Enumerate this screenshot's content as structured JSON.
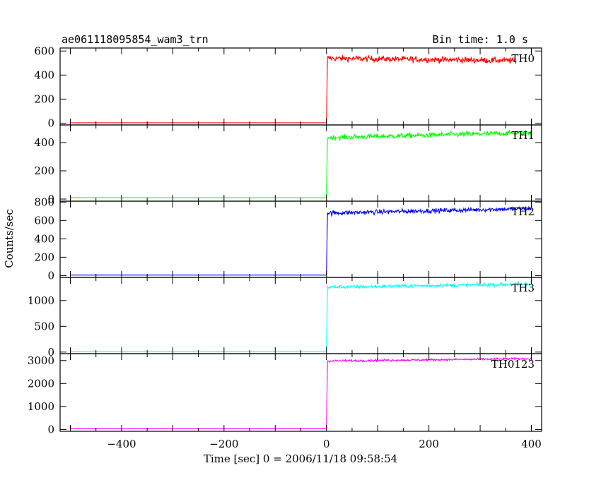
{
  "chart_data": {
    "type": "line",
    "title": "ae061118095854_wam3_trn",
    "bin_time": "Bin time: 1.0 s",
    "xlabel": "Time [sec] 0 = 2006/11/18 09:58:54",
    "ylabel": "Counts/sec",
    "xlim": [
      -520,
      420
    ],
    "x_ticks": [
      -400,
      -200,
      0,
      200,
      400
    ],
    "x_tick_labels": [
      "−400",
      "−200",
      "0",
      "200",
      "400"
    ],
    "grid": false,
    "panels": [
      {
        "name": "TH0",
        "color": "#ff0000",
        "ylim": [
          -15,
          625
        ],
        "y_ticks": [
          0,
          200,
          400,
          600
        ],
        "y_tick_labels": [
          "0",
          "200",
          "400",
          "600"
        ],
        "pre_level": 3,
        "post_start": 540,
        "post_end": 520,
        "noise": 25,
        "data_end": 370,
        "x": [
          -500,
          0,
          2,
          100,
          200,
          300,
          370
        ],
        "y": [
          3,
          3,
          560,
          545,
          540,
          525,
          520
        ]
      },
      {
        "name": "TH1",
        "color": "#00ff00",
        "ylim": [
          -15,
          525
        ],
        "y_ticks": [
          0,
          200,
          400
        ],
        "y_tick_labels": [
          "0",
          "200",
          "400"
        ],
        "pre_level": 10,
        "post_start": 435,
        "post_end": 470,
        "noise": 18,
        "data_end": 400,
        "x": [
          -500,
          0,
          2,
          100,
          200,
          300,
          400
        ],
        "y": [
          10,
          10,
          440,
          440,
          450,
          460,
          470
        ]
      },
      {
        "name": "TH2",
        "color": "#0000ff",
        "ylim": [
          -20,
          810
        ],
        "y_ticks": [
          0,
          200,
          400,
          600,
          800
        ],
        "y_tick_labels": [
          "0",
          "200",
          "400",
          "600",
          "800"
        ],
        "pre_level": 5,
        "post_start": 680,
        "post_end": 730,
        "noise": 25,
        "data_end": 400,
        "x": [
          -500,
          0,
          2,
          100,
          200,
          300,
          400
        ],
        "y": [
          5,
          5,
          690,
          690,
          700,
          710,
          730
        ]
      },
      {
        "name": "TH3",
        "color": "#00ffff",
        "ylim": [
          -30,
          1450
        ],
        "y_ticks": [
          0,
          500,
          1000
        ],
        "y_tick_labels": [
          "0",
          "500",
          "1000"
        ],
        "pre_level": 5,
        "post_start": 1260,
        "post_end": 1320,
        "noise": 35,
        "data_end": 400,
        "x": [
          -500,
          0,
          2,
          100,
          200,
          300,
          400
        ],
        "y": [
          5,
          5,
          1280,
          1280,
          1290,
          1300,
          1320
        ]
      },
      {
        "name": "TH0123",
        "color": "#ff00ff",
        "ylim": [
          -80,
          3300
        ],
        "y_ticks": [
          0,
          1000,
          2000,
          3000
        ],
        "y_tick_labels": [
          "0",
          "1000",
          "2000",
          "3000"
        ],
        "pre_level": 30,
        "post_start": 2980,
        "post_end": 3080,
        "noise": 45,
        "data_end": 400,
        "x": [
          -500,
          0,
          2,
          100,
          200,
          300,
          400
        ],
        "y": [
          30,
          30,
          2990,
          3000,
          3020,
          3050,
          3080
        ]
      }
    ]
  }
}
